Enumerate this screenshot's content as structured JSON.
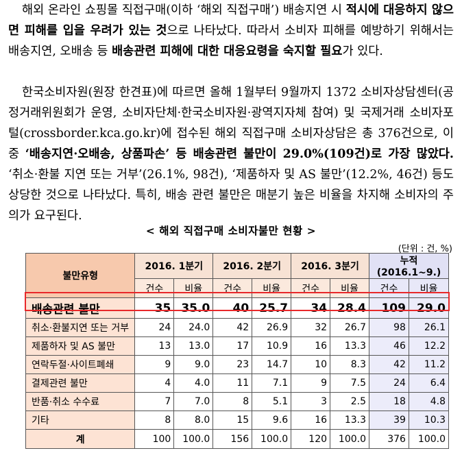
{
  "paragraph1": {
    "t1": "해외 온라인 쇼핑몰 직접구매(이하 ‘해외 직접구매’) 배송지연 시 ",
    "b1": "적시에 대응하지 않으면 피해를 입을 우려가 있는 것",
    "t2": "으로 나타났다. 따라서 소비자 피해를 예방하기 위해서는 배송지연, 오배송 등 ",
    "b2": "배송관련 피해에 대한 대응요령을 숙지할 필요",
    "t3": "가 있다."
  },
  "paragraph2": {
    "t1": "한국소비자원(원장 한견표)에 따르면 올해 1월부터 9월까지 1372 소비자상담센터(공정거래위원회가 운영, 소비자단체·한국소비자원·광역지자체 참여) 및 국제거래 소비자포털(crossborder.kca.go.kr)에 접수된 해외 직접구매 소비자상담은 총 376건으로, 이 중 ",
    "b1": "‘배송지연·오배송, 상품파손’ 등 배송관련 불만이 29.0%(109건)로 가장 많았다.",
    "t2": " ‘취소·환불 지연 또는 거부’(26.1%, 98건), ‘제품하자 및 AS 불만’(12.2%, 46건) 등도 상당한 것으로 나타났다. 특히, 배송 관련 불만은 매분기 높은 비율을 차지해 소비자의 주의가 요구된다."
  },
  "table_title": "< 해외 직접구매 소비자불만 현황 >",
  "unit": "(단위 : 건, %)",
  "table": {
    "col_header": "불만유형",
    "periods": [
      "2016. 1분기",
      "2016. 2분기",
      "2016. 3분기",
      "누적(2016.1~9.)"
    ],
    "sub_count": "건수",
    "sub_ratio": "비율",
    "rows": [
      {
        "label": "배송관련 불만",
        "v": [
          "35",
          "35.0",
          "40",
          "25.7",
          "34",
          "28.4",
          "109",
          "29.0"
        ]
      },
      {
        "label": "취소·환불지연 또는 거부",
        "v": [
          "24",
          "24.0",
          "42",
          "26.9",
          "32",
          "26.7",
          "98",
          "26.1"
        ]
      },
      {
        "label": "제품하자 및 AS 불만",
        "v": [
          "13",
          "13.0",
          "17",
          "10.9",
          "16",
          "13.3",
          "46",
          "12.2"
        ]
      },
      {
        "label": "연락두절·사이트폐쇄",
        "v": [
          "9",
          "9.0",
          "23",
          "14.7",
          "10",
          "8.3",
          "42",
          "11.2"
        ]
      },
      {
        "label": "결제관련 불만",
        "v": [
          "4",
          "4.0",
          "11",
          "7.1",
          "9",
          "7.5",
          "24",
          "6.4"
        ]
      },
      {
        "label": "반품·취소 수수료",
        "v": [
          "7",
          "7.0",
          "8",
          "5.1",
          "3",
          "2.5",
          "18",
          "4.8"
        ]
      },
      {
        "label": "기타",
        "v": [
          "8",
          "8.0",
          "15",
          "9.6",
          "16",
          "13.3",
          "39",
          "10.3"
        ]
      }
    ],
    "total": {
      "label": "계",
      "v": [
        "100",
        "100.0",
        "156",
        "100.0",
        "120",
        "100.0",
        "376",
        "100.0"
      ]
    }
  }
}
